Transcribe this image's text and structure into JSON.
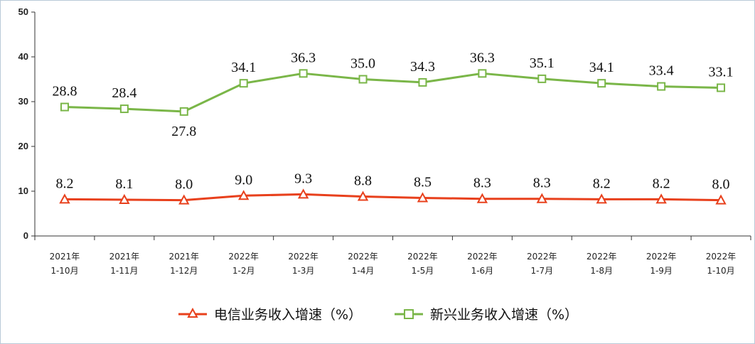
{
  "chart_data": {
    "type": "line",
    "categories": [
      [
        "2021年",
        "1-10月"
      ],
      [
        "2021年",
        "1-11月"
      ],
      [
        "2021年",
        "1-12月"
      ],
      [
        "2022年",
        "1-2月"
      ],
      [
        "2022年",
        "1-3月"
      ],
      [
        "2022年",
        "1-4月"
      ],
      [
        "2022年",
        "1-5月"
      ],
      [
        "2022年",
        "1-6月"
      ],
      [
        "2022年",
        "1-7月"
      ],
      [
        "2022年",
        "1-8月"
      ],
      [
        "2022年",
        "1-9月"
      ],
      [
        "2022年",
        "1-10月"
      ]
    ],
    "series": [
      {
        "name": "电信业务收入增速（%）",
        "color": "#e8401c",
        "marker": "triangle",
        "values": [
          8.2,
          8.1,
          8.0,
          9.0,
          9.3,
          8.8,
          8.5,
          8.3,
          8.3,
          8.2,
          8.2,
          8.0
        ],
        "labels": [
          "8.2",
          "8.1",
          "8.0",
          "9.0",
          "9.3",
          "8.8",
          "8.5",
          "8.3",
          "8.3",
          "8.2",
          "8.2",
          "8.0"
        ]
      },
      {
        "name": "新兴业务收入增速（%）",
        "color": "#7ab648",
        "marker": "square",
        "values": [
          28.8,
          28.4,
          27.8,
          34.1,
          36.3,
          35.0,
          34.3,
          36.3,
          35.1,
          34.1,
          33.4,
          33.1
        ],
        "labels": [
          "28.8",
          "28.4",
          "27.8",
          "34.1",
          "36.3",
          "35.0",
          "34.3",
          "36.3",
          "35.1",
          "34.1",
          "33.4",
          "33.1"
        ]
      }
    ],
    "ylim": [
      0,
      50
    ],
    "yticks": [
      "0",
      "10",
      "20",
      "30",
      "40",
      "50"
    ],
    "grid": false,
    "legend_position": "bottom-center"
  }
}
